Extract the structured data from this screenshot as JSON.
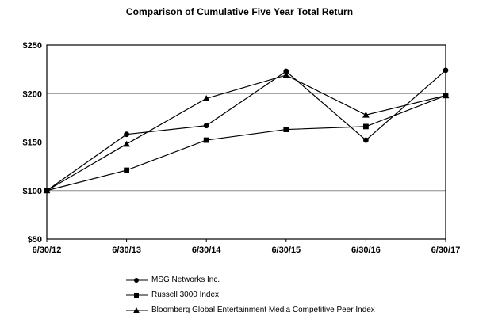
{
  "chart_data": {
    "type": "line",
    "title": "Comparison of Cumulative Five Year Total Return",
    "x": [
      "6/30/12",
      "6/30/13",
      "6/30/14",
      "6/30/15",
      "6/30/16",
      "6/30/17"
    ],
    "xlabel": "",
    "ylabel": "",
    "ylim": [
      50,
      250
    ],
    "y_tick_values": [
      250,
      200,
      150,
      100,
      50
    ],
    "y_tick_labels": [
      "$250",
      "$200",
      "$150",
      "$100",
      "$50"
    ],
    "grid": "horizontal-inner",
    "legend_position": "bottom-left",
    "series": [
      {
        "name": "MSG Networks Inc.",
        "marker": "circle",
        "values": [
          100,
          158,
          167,
          223,
          152,
          224
        ]
      },
      {
        "name": "Russell 3000 Index",
        "marker": "square",
        "values": [
          100,
          121,
          152,
          163,
          166,
          198
        ]
      },
      {
        "name": "Bloomberg Global Entertainment Media Competitive Peer Index",
        "marker": "triangle",
        "values": [
          100,
          148,
          195,
          219,
          178,
          198
        ]
      }
    ],
    "colors": {
      "line": "#000000",
      "marker": "#000000",
      "grid": "#888888",
      "frame": "#000000",
      "text": "#000000",
      "background": "#ffffff"
    }
  }
}
